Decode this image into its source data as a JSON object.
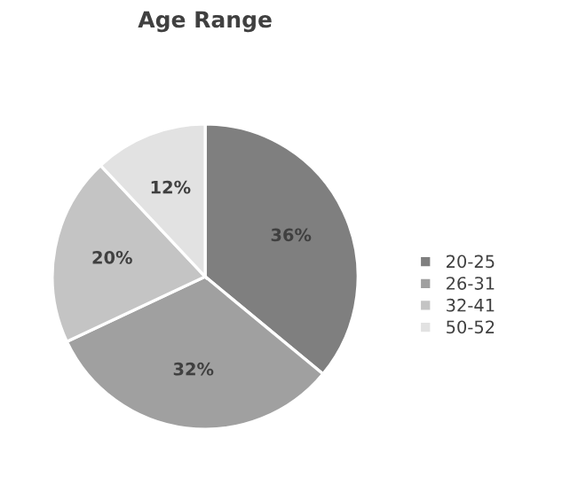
{
  "chart_data": {
    "type": "pie",
    "title": "Age Range",
    "categories": [
      "20-25",
      "26-31",
      "32-41",
      "50-52"
    ],
    "values": [
      36,
      32,
      20,
      12
    ],
    "colors": [
      "#7f7f7f",
      "#a0a0a0",
      "#c4c4c4",
      "#e2e2e2"
    ],
    "value_labels": [
      "36%",
      "32%",
      "20%",
      "12%"
    ],
    "legend": "right"
  }
}
